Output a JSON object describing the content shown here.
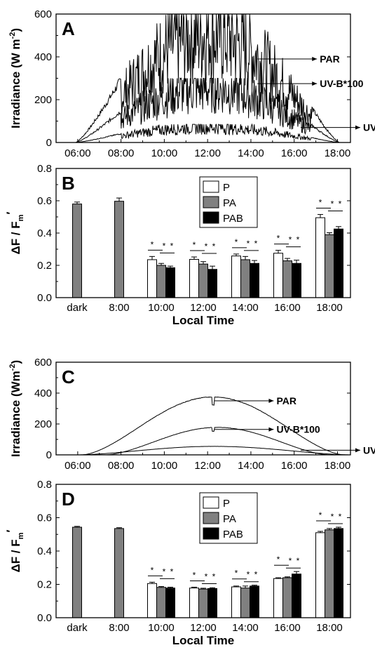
{
  "chart_data": [
    {
      "panel": "A",
      "type": "line",
      "ylabel": "Irradiance (W m-2)",
      "ylabel_parts": [
        "Irradiance (W m",
        "-2",
        ")"
      ],
      "ylim": [
        0,
        600
      ],
      "yticks": [
        "0",
        "200",
        "400",
        "600"
      ],
      "xlim": [
        5.0,
        18.6
      ],
      "xticks": [
        "06:00",
        "08:00",
        "10:00",
        "12:00",
        "14:00",
        "16:00",
        "18:00"
      ],
      "series": [
        {
          "name": "PAR",
          "profile": "cloudy",
          "peak": 600,
          "start": 5.9,
          "end": 18.1
        },
        {
          "name": "UV-B*100",
          "profile": "cloudy",
          "peak": 300,
          "start": 5.9,
          "end": 18.1
        },
        {
          "name": "UV-A",
          "profile": "cloudy",
          "peak": 85,
          "start": 5.9,
          "end": 18.1
        }
      ],
      "annotations": [
        {
          "label": "PAR",
          "at": [
            14.3,
            390
          ]
        },
        {
          "label": "UV-B*100",
          "at": [
            14.3,
            275
          ]
        },
        {
          "label": "UV-A",
          "at": [
            16.3,
            70
          ]
        }
      ]
    },
    {
      "panel": "B",
      "type": "bar",
      "ylabel": "ΔF / Fm'",
      "ylabel_parts": [
        "ΔF / F",
        "m",
        "′"
      ],
      "xlabel": "Local Time",
      "ylim": [
        0,
        0.8
      ],
      "yticks": [
        "0.0",
        "0.2",
        "0.4",
        "0.6",
        "0.8"
      ],
      "categories": [
        "dark",
        "8:00",
        "10:00",
        "12:00",
        "14:00",
        "16:00",
        "18:00"
      ],
      "legend_position": "top-center",
      "colors": {
        "P": "#ffffff",
        "PA": "#808080",
        "PAB": "#000000"
      },
      "series": [
        {
          "name": "P",
          "values": [
            null,
            null,
            0.235,
            0.237,
            0.258,
            0.275,
            0.495
          ],
          "errors": [
            null,
            null,
            0.02,
            0.015,
            0.012,
            0.018,
            0.02
          ]
        },
        {
          "name": "PA",
          "values": [
            0.58,
            0.597,
            0.2,
            0.208,
            0.235,
            0.228,
            0.39
          ],
          "errors": [
            0.012,
            0.02,
            0.012,
            0.015,
            0.02,
            0.015,
            0.012
          ]
        },
        {
          "name": "PAB",
          "values": [
            null,
            null,
            0.185,
            0.175,
            0.212,
            0.212,
            0.425
          ],
          "errors": [
            null,
            null,
            0.01,
            0.02,
            0.018,
            0.02,
            0.015
          ]
        }
      ],
      "significance": "*"
    },
    {
      "panel": "C",
      "type": "line",
      "ylabel": "Irradiance (Wm-2)",
      "ylabel_parts": [
        "Irradiance (Wm",
        "-2",
        ")"
      ],
      "ylim": [
        0,
        600
      ],
      "yticks": [
        "0",
        "200",
        "400",
        "600"
      ],
      "xlim": [
        5.0,
        18.6
      ],
      "xticks": [
        "06:00",
        "08:00",
        "10:00",
        "12:00",
        "14:00",
        "16:00",
        "18:00"
      ],
      "series": [
        {
          "name": "PAR",
          "profile": "clear",
          "peak": 375,
          "start": 6.2,
          "end": 18.3
        },
        {
          "name": "UV-B*100",
          "profile": "clear",
          "peak": 178,
          "start": 7.3,
          "end": 17.6
        },
        {
          "name": "UV-A",
          "profile": "clear",
          "peak": 55,
          "start": 6.0,
          "end": 18.6
        }
      ],
      "annotations": [
        {
          "label": "PAR",
          "at": [
            12.3,
            350
          ]
        },
        {
          "label": "UV-B*100",
          "at": [
            12.3,
            165
          ]
        },
        {
          "label": "UV-A",
          "at": [
            16.3,
            30
          ]
        }
      ]
    },
    {
      "panel": "D",
      "type": "bar",
      "ylabel": "ΔF / Fm'",
      "ylabel_parts": [
        "ΔF / F",
        "m",
        "′"
      ],
      "xlabel": "Local Time",
      "ylim": [
        0,
        0.8
      ],
      "yticks": [
        "0.0",
        "0.2",
        "0.4",
        "0.6",
        "0.8"
      ],
      "categories": [
        "dark",
        "8:00",
        "10:00",
        "12:00",
        "14:00",
        "16:00",
        "18:00"
      ],
      "legend_position": "top-center",
      "colors": {
        "P": "#ffffff",
        "PA": "#808080",
        "PAB": "#000000"
      },
      "series": [
        {
          "name": "P",
          "values": [
            null,
            null,
            0.205,
            0.178,
            0.185,
            0.235,
            0.51
          ],
          "errors": [
            null,
            null,
            0.008,
            0.005,
            0.005,
            0.005,
            0.008
          ]
        },
        {
          "name": "PA",
          "values": [
            0.543,
            0.535,
            0.182,
            0.172,
            0.178,
            0.24,
            0.527
          ],
          "errors": [
            0.005,
            0.005,
            0.005,
            0.005,
            0.012,
            0.005,
            0.008
          ]
        },
        {
          "name": "PAB",
          "values": [
            null,
            null,
            0.178,
            0.175,
            0.19,
            0.262,
            0.535
          ],
          "errors": [
            null,
            null,
            0.005,
            0.005,
            0.005,
            0.015,
            0.008
          ]
        }
      ],
      "significance": "*"
    }
  ]
}
